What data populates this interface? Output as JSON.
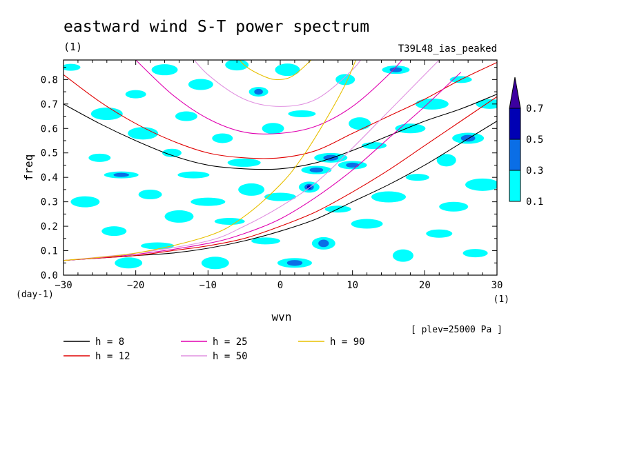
{
  "chart_data": {
    "type": "line",
    "title": "eastward wind S-T power spectrum",
    "subtitle": "(1)",
    "run_label": "T39L48_ias_peaked",
    "xlabel": "wvn",
    "x_unit": "(1)",
    "ylabel": "freq",
    "y_unit": "(day-1)",
    "level_note": "[ plev=25000 Pa ]",
    "xlim": [
      -30,
      30
    ],
    "ylim": [
      0.0,
      0.88
    ],
    "x_ticks": [
      "−30",
      "−20",
      "−10",
      "0",
      "10",
      "20",
      "30"
    ],
    "y_ticks": [
      "0.0",
      "0.1",
      "0.2",
      "0.3",
      "0.4",
      "0.5",
      "0.6",
      "0.7",
      "0.8"
    ],
    "colorbar": {
      "levels": [
        "0.1",
        "0.3",
        "0.5",
        "0.7"
      ],
      "colors": [
        "#00ffff",
        "#0a6ee6",
        "#0000b4",
        "#3c00a0"
      ]
    },
    "series": [
      {
        "name": "h =  8",
        "color": "#000000",
        "kind": "rossby",
        "x": [
          -30,
          -25,
          -20,
          -15,
          -10,
          -5,
          0,
          5,
          10,
          15,
          20,
          25,
          30
        ],
        "y": [
          0.06,
          0.07,
          0.08,
          0.09,
          0.11,
          0.14,
          0.18,
          0.23,
          0.3,
          0.37,
          0.45,
          0.54,
          0.63
        ]
      },
      {
        "name": "h =  8",
        "color": "#000000",
        "kind": "inertia-gravity",
        "x": [
          -30,
          -25,
          -20,
          -15,
          -10,
          -5,
          0,
          5,
          10,
          15,
          20,
          25,
          30
        ],
        "y": [
          0.7,
          0.62,
          0.55,
          0.49,
          0.45,
          0.435,
          0.435,
          0.46,
          0.51,
          0.57,
          0.63,
          0.68,
          0.74
        ]
      },
      {
        "name": "h = 12",
        "color": "#e00000",
        "kind": "rossby",
        "x": [
          -30,
          -25,
          -20,
          -15,
          -10,
          -5,
          0,
          5,
          10,
          15,
          20,
          25,
          30
        ],
        "y": [
          0.06,
          0.07,
          0.08,
          0.1,
          0.12,
          0.15,
          0.2,
          0.26,
          0.34,
          0.43,
          0.53,
          0.63,
          0.73
        ]
      },
      {
        "name": "h = 12",
        "color": "#e00000",
        "kind": "inertia-gravity",
        "x": [
          -30,
          -25,
          -20,
          -15,
          -10,
          -5,
          0,
          5,
          10,
          15,
          20,
          25,
          30
        ],
        "y": [
          0.82,
          0.71,
          0.62,
          0.55,
          0.5,
          0.48,
          0.48,
          0.51,
          0.58,
          0.65,
          0.72,
          0.8,
          0.87
        ]
      },
      {
        "name": "h = 25",
        "color": "#e000b0",
        "kind": "rossby",
        "x": [
          -30,
          -20,
          -10,
          -5,
          0,
          5,
          10,
          15,
          20,
          25
        ],
        "y": [
          0.06,
          0.085,
          0.13,
          0.17,
          0.23,
          0.32,
          0.43,
          0.56,
          0.69,
          0.83
        ]
      },
      {
        "name": "h = 25",
        "color": "#e000b0",
        "kind": "inertia-gravity",
        "x": [
          -20,
          -15,
          -10,
          -5,
          0,
          5,
          10,
          15,
          18
        ],
        "y": [
          0.88,
          0.74,
          0.64,
          0.585,
          0.58,
          0.61,
          0.69,
          0.82,
          0.92
        ]
      },
      {
        "name": "h = 50",
        "color": "#e090e0",
        "kind": "rossby",
        "x": [
          -30,
          -20,
          -10,
          -5,
          0,
          5,
          10,
          15,
          20,
          24
        ],
        "y": [
          0.06,
          0.09,
          0.14,
          0.2,
          0.28,
          0.38,
          0.52,
          0.67,
          0.82,
          0.94
        ]
      },
      {
        "name": "h = 50",
        "color": "#e090e0",
        "kind": "inertia-gravity",
        "x": [
          -13,
          -10,
          -5,
          0,
          5,
          10,
          12
        ],
        "y": [
          0.92,
          0.82,
          0.72,
          0.69,
          0.72,
          0.84,
          0.92
        ]
      },
      {
        "name": "h = 90",
        "color": "#e8c000",
        "kind": "rossby",
        "x": [
          -30,
          -20,
          -10,
          -5,
          0,
          3,
          6,
          9,
          11
        ],
        "y": [
          0.06,
          0.09,
          0.16,
          0.24,
          0.37,
          0.48,
          0.62,
          0.78,
          0.92
        ]
      },
      {
        "name": "h = 90",
        "color": "#e8c000",
        "kind": "inertia-gravity",
        "x": [
          -7,
          -5,
          -2,
          0,
          2,
          5
        ],
        "y": [
          0.94,
          0.86,
          0.81,
          0.8,
          0.82,
          0.9
        ]
      }
    ],
    "legend": [
      {
        "label": "h =  8",
        "color": "#000000"
      },
      {
        "label": "h = 12",
        "color": "#e00000"
      },
      {
        "label": "h = 25",
        "color": "#e000b0"
      },
      {
        "label": "h = 50",
        "color": "#e090e0"
      },
      {
        "label": "h = 90",
        "color": "#e8c000"
      }
    ],
    "contour_blobs": [
      {
        "x": -29,
        "y": 0.85,
        "level": 1
      },
      {
        "x": -27,
        "y": 0.3,
        "level": 1
      },
      {
        "x": -25,
        "y": 0.48,
        "level": 1
      },
      {
        "x": -24,
        "y": 0.66,
        "level": 1
      },
      {
        "x": -23,
        "y": 0.18,
        "level": 1
      },
      {
        "x": -22,
        "y": 0.41,
        "level": 2
      },
      {
        "x": -21,
        "y": 0.05,
        "level": 1
      },
      {
        "x": -20,
        "y": 0.74,
        "level": 1
      },
      {
        "x": -19,
        "y": 0.58,
        "level": 1
      },
      {
        "x": -18,
        "y": 0.33,
        "level": 1
      },
      {
        "x": -17,
        "y": 0.12,
        "level": 1
      },
      {
        "x": -16,
        "y": 0.84,
        "level": 1
      },
      {
        "x": -15,
        "y": 0.5,
        "level": 1
      },
      {
        "x": -14,
        "y": 0.24,
        "level": 1
      },
      {
        "x": -13,
        "y": 0.65,
        "level": 1
      },
      {
        "x": -12,
        "y": 0.41,
        "level": 1
      },
      {
        "x": -11,
        "y": 0.78,
        "level": 1
      },
      {
        "x": -10,
        "y": 0.3,
        "level": 1
      },
      {
        "x": -9,
        "y": 0.05,
        "level": 1
      },
      {
        "x": -8,
        "y": 0.56,
        "level": 1
      },
      {
        "x": -7,
        "y": 0.22,
        "level": 1
      },
      {
        "x": -6,
        "y": 0.86,
        "level": 1
      },
      {
        "x": -5,
        "y": 0.46,
        "level": 1
      },
      {
        "x": -4,
        "y": 0.35,
        "level": 1
      },
      {
        "x": -3,
        "y": 0.75,
        "level": 2
      },
      {
        "x": -2,
        "y": 0.14,
        "level": 1
      },
      {
        "x": -1,
        "y": 0.6,
        "level": 1
      },
      {
        "x": 0,
        "y": 0.32,
        "level": 1
      },
      {
        "x": 1,
        "y": 0.84,
        "level": 1
      },
      {
        "x": 2,
        "y": 0.05,
        "level": 2
      },
      {
        "x": 3,
        "y": 0.66,
        "level": 1
      },
      {
        "x": 4,
        "y": 0.36,
        "level": 3
      },
      {
        "x": 5,
        "y": 0.43,
        "level": 2
      },
      {
        "x": 6,
        "y": 0.13,
        "level": 2
      },
      {
        "x": 7,
        "y": 0.48,
        "level": 2
      },
      {
        "x": 8,
        "y": 0.27,
        "level": 1
      },
      {
        "x": 9,
        "y": 0.8,
        "level": 1
      },
      {
        "x": 10,
        "y": 0.45,
        "level": 2
      },
      {
        "x": 11,
        "y": 0.62,
        "level": 1
      },
      {
        "x": 12,
        "y": 0.21,
        "level": 1
      },
      {
        "x": 13,
        "y": 0.53,
        "level": 1
      },
      {
        "x": 15,
        "y": 0.32,
        "level": 1
      },
      {
        "x": 16,
        "y": 0.84,
        "level": 2
      },
      {
        "x": 17,
        "y": 0.08,
        "level": 1
      },
      {
        "x": 18,
        "y": 0.6,
        "level": 1
      },
      {
        "x": 19,
        "y": 0.4,
        "level": 1
      },
      {
        "x": 21,
        "y": 0.7,
        "level": 1
      },
      {
        "x": 22,
        "y": 0.17,
        "level": 1
      },
      {
        "x": 23,
        "y": 0.47,
        "level": 1
      },
      {
        "x": 24,
        "y": 0.28,
        "level": 1
      },
      {
        "x": 25,
        "y": 0.8,
        "level": 1
      },
      {
        "x": 26,
        "y": 0.56,
        "level": 2
      },
      {
        "x": 27,
        "y": 0.09,
        "level": 1
      },
      {
        "x": 28,
        "y": 0.37,
        "level": 1
      },
      {
        "x": 29,
        "y": 0.7,
        "level": 1
      }
    ]
  }
}
